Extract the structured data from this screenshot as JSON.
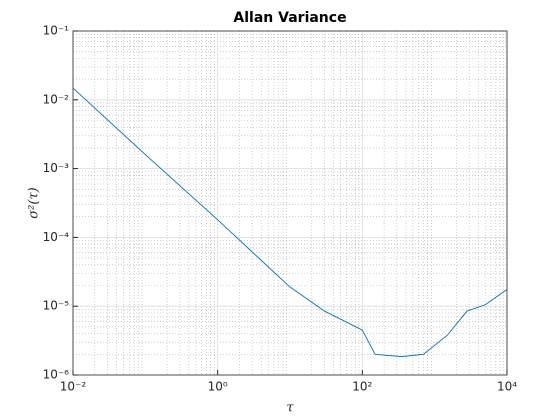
{
  "chart_data": {
    "type": "line",
    "title": "Allan Variance",
    "x_label": "τ",
    "y_label": "σ²(τ)",
    "x": [
      0.01,
      0.1,
      1,
      10,
      30,
      100,
      150,
      350,
      700,
      1500,
      2800,
      5000,
      10000
    ],
    "series": [
      {
        "color": "#0072bd",
        "values": [
          0.0148,
          0.0016,
          0.00018,
          1.9e-05,
          8.5e-06,
          4.5e-06,
          2e-06,
          1.85e-06,
          2e-06,
          3.8e-06,
          8.5e-06,
          1.05e-05,
          1.75e-05
        ]
      }
    ],
    "xscale": "log",
    "yscale": "log",
    "xlim": [
      0.01,
      10000
    ],
    "ylim": [
      1e-06,
      0.1
    ],
    "xticks": [
      {
        "value": 0.01,
        "label": "10⁻²"
      },
      {
        "value": 1,
        "label": "10⁰"
      },
      {
        "value": 100,
        "label": "10²"
      },
      {
        "value": 10000,
        "label": "10⁴"
      }
    ],
    "yticks": [
      {
        "value": 1e-06,
        "label": "10⁻⁶"
      },
      {
        "value": 1e-05,
        "label": "10⁻⁵"
      },
      {
        "value": 0.0001,
        "label": "10⁻⁴"
      },
      {
        "value": 0.001,
        "label": "10⁻³"
      },
      {
        "value": 0.01,
        "label": "10⁻²"
      },
      {
        "value": 0.1,
        "label": "10⁻¹"
      }
    ],
    "grid": true,
    "minor_grid": true
  }
}
